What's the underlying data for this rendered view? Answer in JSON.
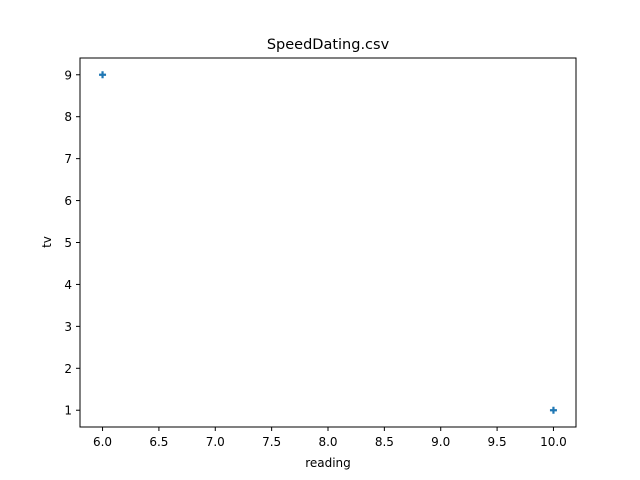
{
  "chart_data": {
    "type": "scatter",
    "title": "SpeedDating.csv",
    "xlabel": "reading",
    "ylabel": "tv",
    "xlim": [
      5.8,
      10.2
    ],
    "ylim": [
      0.6,
      9.4
    ],
    "xticks": [
      6.0,
      6.5,
      7.0,
      7.5,
      8.0,
      8.5,
      9.0,
      9.5,
      10.0
    ],
    "xtick_labels": [
      "6.0",
      "6.5",
      "7.0",
      "7.5",
      "8.0",
      "8.5",
      "9.0",
      "9.5",
      "10.0"
    ],
    "yticks": [
      1,
      2,
      3,
      4,
      5,
      6,
      7,
      8,
      9
    ],
    "ytick_labels": [
      "1",
      "2",
      "3",
      "4",
      "5",
      "6",
      "7",
      "8",
      "9"
    ],
    "grid": false,
    "marker": "plus",
    "series": [
      {
        "color": "#1f77b4",
        "points": [
          {
            "x": 6,
            "y": 9
          },
          {
            "x": 10,
            "y": 1
          }
        ]
      }
    ]
  }
}
